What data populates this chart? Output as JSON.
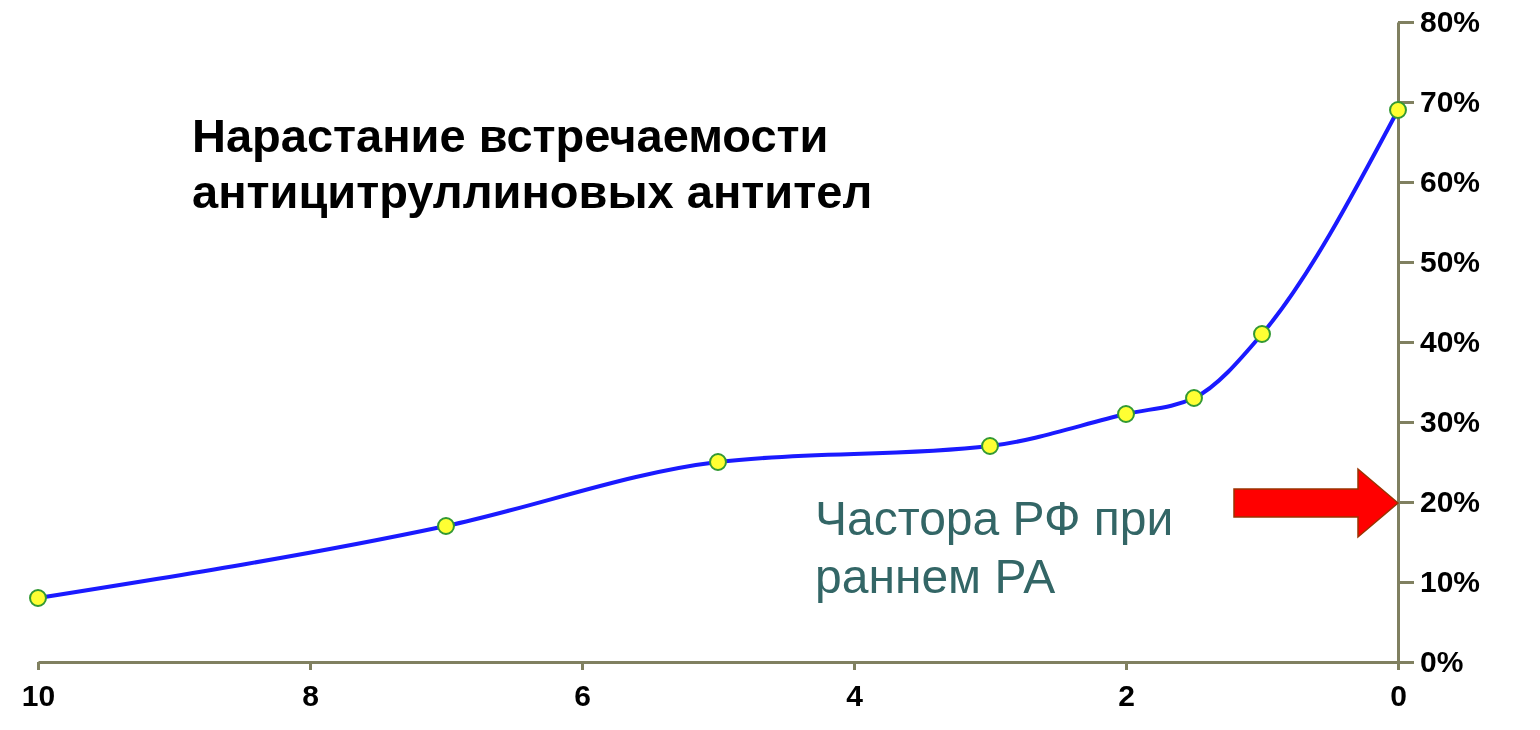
{
  "chart_data": {
    "type": "line",
    "title": "Нарастание встречаемости антицитруллиновых антител",
    "x": [
      10,
      7,
      5,
      3,
      2,
      1.5,
      1,
      0
    ],
    "series": [
      {
        "color": "#1a1aff",
        "values": [
          8,
          17,
          25,
          27,
          31,
          33,
          41,
          69
        ]
      }
    ],
    "xlim": [
      10,
      0
    ],
    "xticks": [
      10,
      8,
      6,
      4,
      2,
      0
    ],
    "ylim": [
      0,
      80
    ],
    "yticks": [
      {
        "value": 0,
        "label": "0%"
      },
      {
        "value": 10,
        "label": "10%"
      },
      {
        "value": 20,
        "label": "20%"
      },
      {
        "value": 30,
        "label": "30%"
      },
      {
        "value": 40,
        "label": "40%"
      },
      {
        "value": 50,
        "label": "50%"
      },
      {
        "value": 60,
        "label": "60%"
      },
      {
        "value": 70,
        "label": "70%"
      },
      {
        "value": 80,
        "label": "80%"
      }
    ],
    "annotations": [
      "Частора РФ при раннем РА"
    ],
    "grid": false,
    "marker": "circle",
    "line_style": "solid"
  }
}
